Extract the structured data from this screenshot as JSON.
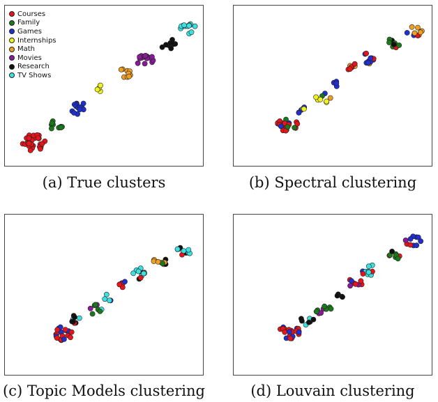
{
  "captions": {
    "a": "(a)  True clusters",
    "b": "(b)  Spectral clustering",
    "c": "(c)  Topic Models clustering",
    "d": "(d)  Louvain clustering"
  },
  "legend": [
    {
      "label": "Courses",
      "color": "#e8141b"
    },
    {
      "label": "Family",
      "color": "#1a7a1a"
    },
    {
      "label": "Games",
      "color": "#1f2fd0"
    },
    {
      "label": "Internships",
      "color": "#f2f21b"
    },
    {
      "label": "Math",
      "color": "#f0a020"
    },
    {
      "label": "Movies",
      "color": "#8a1a9a"
    },
    {
      "label": "Research",
      "color": "#111111"
    },
    {
      "label": "TV Shows",
      "color": "#3ce0e0"
    }
  ],
  "chart_data": [
    {
      "type": "scatter",
      "title": "(a) True clusters",
      "xlim": [
        0,
        1
      ],
      "ylim": [
        0,
        1
      ],
      "grid": false,
      "legend_position": "top-left",
      "series_order": [
        "Courses",
        "Family",
        "Games",
        "Internships",
        "Math",
        "Movies",
        "Research",
        "TV Shows"
      ],
      "clusters": [
        {
          "series": "Courses",
          "x": 0.12,
          "y": 0.12,
          "n": 30,
          "mix": []
        },
        {
          "series": "Family",
          "x": 0.24,
          "y": 0.23,
          "n": 9,
          "mix": []
        },
        {
          "series": "Games",
          "x": 0.37,
          "y": 0.35,
          "n": 14,
          "mix": []
        },
        {
          "series": "Internships",
          "x": 0.49,
          "y": 0.48,
          "n": 5,
          "mix": []
        },
        {
          "series": "Math",
          "x": 0.61,
          "y": 0.59,
          "n": 9,
          "mix": []
        },
        {
          "series": "Movies",
          "x": 0.72,
          "y": 0.67,
          "n": 16,
          "mix": []
        },
        {
          "series": "Research",
          "x": 0.84,
          "y": 0.78,
          "n": 10,
          "mix": []
        },
        {
          "series": "TV Shows",
          "x": 0.95,
          "y": 0.88,
          "n": 13,
          "mix": []
        }
      ]
    },
    {
      "type": "scatter",
      "title": "(b) Spectral clustering",
      "xlim": [
        0,
        1
      ],
      "ylim": [
        0,
        1
      ],
      "grid": false,
      "clusters": [
        {
          "series": "Courses",
          "x": 0.26,
          "y": 0.24,
          "n": 20,
          "mix": [
            "Family",
            "Games"
          ]
        },
        {
          "series": "Games",
          "x": 0.33,
          "y": 0.33,
          "n": 6,
          "mix": [
            "Internships"
          ]
        },
        {
          "series": "Internships",
          "x": 0.45,
          "y": 0.42,
          "n": 9,
          "mix": [
            "Games",
            "Movies",
            "Family",
            "Math"
          ]
        },
        {
          "series": "Games",
          "x": 0.53,
          "y": 0.51,
          "n": 4,
          "mix": []
        },
        {
          "series": "Courses",
          "x": 0.61,
          "y": 0.62,
          "n": 7,
          "mix": [
            "Math"
          ]
        },
        {
          "series": "Games",
          "x": 0.69,
          "y": 0.68,
          "n": 12,
          "mix": [
            "Math",
            "Courses"
          ]
        },
        {
          "series": "Family",
          "x": 0.82,
          "y": 0.78,
          "n": 8,
          "mix": [
            "Research",
            "TV Shows",
            "Courses"
          ]
        },
        {
          "series": "Math",
          "x": 0.94,
          "y": 0.86,
          "n": 10,
          "mix": [
            "Games",
            "Internships",
            "Courses"
          ]
        }
      ]
    },
    {
      "type": "scatter",
      "title": "(c) Topic Models clustering",
      "xlim": [
        0,
        1
      ],
      "ylim": [
        0,
        1
      ],
      "grid": false,
      "clusters": [
        {
          "series": "Courses",
          "x": 0.28,
          "y": 0.24,
          "n": 20,
          "mix": [
            "Games"
          ]
        },
        {
          "series": "Research",
          "x": 0.35,
          "y": 0.33,
          "n": 9,
          "mix": [
            "TV Shows",
            "Courses"
          ]
        },
        {
          "series": "Family",
          "x": 0.45,
          "y": 0.4,
          "n": 8,
          "mix": [
            "Movies",
            "Games",
            "TV Shows"
          ]
        },
        {
          "series": "TV Shows",
          "x": 0.52,
          "y": 0.48,
          "n": 4,
          "mix": [
            "Games",
            "Math"
          ]
        },
        {
          "series": "Courses",
          "x": 0.61,
          "y": 0.57,
          "n": 6,
          "mix": [
            "Games"
          ]
        },
        {
          "series": "TV Shows",
          "x": 0.68,
          "y": 0.64,
          "n": 12,
          "mix": [
            "Research",
            "Games",
            "Courses"
          ]
        },
        {
          "series": "Math",
          "x": 0.8,
          "y": 0.72,
          "n": 9,
          "mix": [
            "Research",
            "Family"
          ]
        },
        {
          "series": "TV Shows",
          "x": 0.93,
          "y": 0.8,
          "n": 10,
          "mix": [
            "Research",
            "Movies",
            "Courses"
          ]
        }
      ]
    },
    {
      "type": "scatter",
      "title": "(d) Louvain clustering",
      "xlim": [
        0,
        1
      ],
      "ylim": [
        0,
        1
      ],
      "grid": false,
      "clusters": [
        {
          "series": "Courses",
          "x": 0.27,
          "y": 0.25,
          "n": 20,
          "mix": [
            "Games"
          ]
        },
        {
          "series": "Research",
          "x": 0.36,
          "y": 0.33,
          "n": 7,
          "mix": [
            "TV Shows",
            "Courses"
          ]
        },
        {
          "series": "Family",
          "x": 0.45,
          "y": 0.4,
          "n": 10,
          "mix": [
            "Movies"
          ]
        },
        {
          "series": "Research",
          "x": 0.53,
          "y": 0.48,
          "n": 4,
          "mix": []
        },
        {
          "series": "Courses",
          "x": 0.62,
          "y": 0.58,
          "n": 8,
          "mix": [
            "Movies",
            "Games"
          ]
        },
        {
          "series": "TV Shows",
          "x": 0.7,
          "y": 0.66,
          "n": 11,
          "mix": [
            "Games",
            "Courses"
          ]
        },
        {
          "series": "Family",
          "x": 0.82,
          "y": 0.76,
          "n": 8,
          "mix": [
            "Courses",
            "Research"
          ]
        },
        {
          "series": "Games",
          "x": 0.93,
          "y": 0.86,
          "n": 10,
          "mix": [
            "Courses",
            "Movies"
          ]
        }
      ]
    }
  ]
}
